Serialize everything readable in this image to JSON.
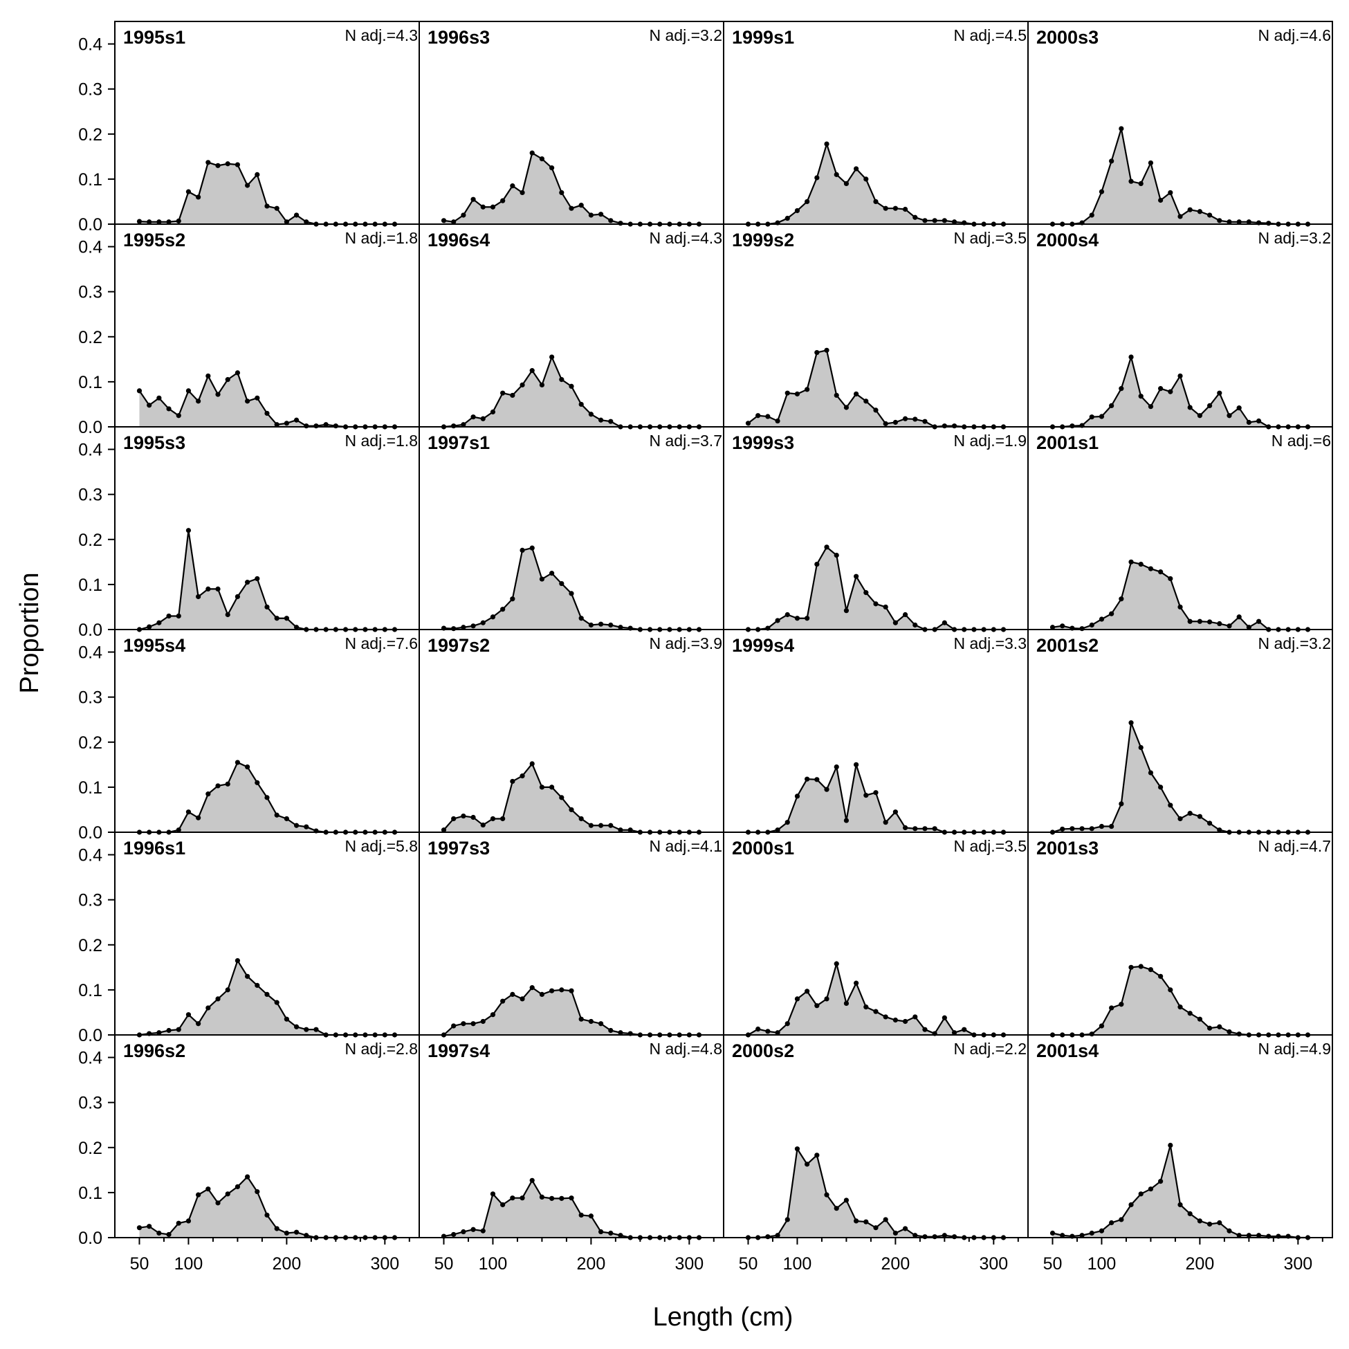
{
  "chart_data": {
    "type": "area",
    "layout": "4 columns x 6 rows of small multiples, filled grey area with black line and point markers",
    "xlabel": "Length (cm)",
    "ylabel": "Proportion",
    "xlim": [
      25,
      335
    ],
    "ylim": [
      0,
      0.45
    ],
    "x_ticks": [
      50,
      100,
      200,
      300
    ],
    "y_ticks": [
      0.0,
      0.1,
      0.2,
      0.3,
      0.4
    ],
    "y_tick_labels": [
      "0.0",
      "0.1",
      "0.2",
      "0.3",
      "0.4"
    ],
    "fill_color": "#c8c8c8",
    "line_color": "#000000",
    "x": [
      50,
      60,
      70,
      80,
      90,
      100,
      110,
      120,
      130,
      140,
      150,
      160,
      170,
      180,
      190,
      200,
      210,
      220,
      230,
      240,
      250,
      260,
      270,
      280,
      290,
      300,
      310
    ],
    "panels": [
      {
        "title": "1995s1",
        "nadj": "N adj.=4.3",
        "values": [
          0.006,
          0.005,
          0.005,
          0.005,
          0.007,
          0.072,
          0.06,
          0.137,
          0.13,
          0.134,
          0.132,
          0.086,
          0.11,
          0.04,
          0.035,
          0.005,
          0.02,
          0.005,
          0,
          0,
          0,
          0,
          0,
          0,
          0,
          0,
          0
        ]
      },
      {
        "title": "1995s2",
        "nadj": "N adj.=1.8",
        "values": [
          0.08,
          0.048,
          0.064,
          0.04,
          0.025,
          0.08,
          0.057,
          0.113,
          0.072,
          0.105,
          0.12,
          0.057,
          0.064,
          0.03,
          0.005,
          0.008,
          0.015,
          0.002,
          0.002,
          0.005,
          0.002,
          0,
          0,
          0,
          0,
          0,
          0
        ]
      },
      {
        "title": "1995s3",
        "nadj": "N adj.=1.8",
        "values": [
          0,
          0.006,
          0.015,
          0.03,
          0.03,
          0.22,
          0.073,
          0.09,
          0.09,
          0.033,
          0.073,
          0.105,
          0.113,
          0.05,
          0.025,
          0.025,
          0.005,
          0,
          0,
          0,
          0,
          0,
          0,
          0,
          0,
          0,
          0
        ]
      },
      {
        "title": "1995s4",
        "nadj": "N adj.=7.6",
        "values": [
          0,
          0,
          0,
          0,
          0.005,
          0.045,
          0.032,
          0.085,
          0.103,
          0.107,
          0.155,
          0.145,
          0.11,
          0.077,
          0.038,
          0.03,
          0.015,
          0.012,
          0.003,
          0,
          0,
          0,
          0,
          0,
          0,
          0,
          0
        ]
      },
      {
        "title": "1996s1",
        "nadj": "N adj.=5.8",
        "values": [
          0,
          0.003,
          0.005,
          0.01,
          0.012,
          0.045,
          0.025,
          0.06,
          0.08,
          0.1,
          0.165,
          0.13,
          0.11,
          0.09,
          0.072,
          0.035,
          0.018,
          0.012,
          0.012,
          0,
          0,
          0,
          0,
          0,
          0,
          0,
          0
        ]
      },
      {
        "title": "1996s2",
        "nadj": "N adj.=2.8",
        "values": [
          0.022,
          0.025,
          0.01,
          0.007,
          0.032,
          0.037,
          0.095,
          0.108,
          0.077,
          0.097,
          0.113,
          0.135,
          0.102,
          0.05,
          0.02,
          0.01,
          0.012,
          0.005,
          0,
          0,
          0,
          0,
          0,
          0,
          0,
          0,
          0
        ]
      },
      {
        "title": "1996s3",
        "nadj": "N adj.=3.2",
        "values": [
          0.008,
          0.005,
          0.02,
          0.055,
          0.038,
          0.038,
          0.052,
          0.085,
          0.07,
          0.158,
          0.145,
          0.125,
          0.07,
          0.035,
          0.042,
          0.02,
          0.022,
          0.008,
          0.002,
          0,
          0,
          0,
          0,
          0,
          0,
          0,
          0
        ]
      },
      {
        "title": "1996s4",
        "nadj": "N adj.=4.3",
        "values": [
          0,
          0.002,
          0.005,
          0.022,
          0.018,
          0.033,
          0.075,
          0.07,
          0.093,
          0.125,
          0.093,
          0.155,
          0.105,
          0.09,
          0.05,
          0.028,
          0.015,
          0.012,
          0,
          0,
          0,
          0,
          0,
          0,
          0,
          0,
          0
        ]
      },
      {
        "title": "1997s1",
        "nadj": "N adj.=3.7",
        "values": [
          0.003,
          0.002,
          0.005,
          0.008,
          0.015,
          0.028,
          0.045,
          0.068,
          0.176,
          0.181,
          0.112,
          0.125,
          0.102,
          0.08,
          0.025,
          0.01,
          0.012,
          0.01,
          0.005,
          0.003,
          0,
          0,
          0,
          0,
          0,
          0,
          0
        ]
      },
      {
        "title": "1997s2",
        "nadj": "N adj.=3.9",
        "values": [
          0.005,
          0.03,
          0.036,
          0.033,
          0.016,
          0.03,
          0.03,
          0.113,
          0.125,
          0.152,
          0.1,
          0.1,
          0.077,
          0.05,
          0.03,
          0.015,
          0.015,
          0.015,
          0.005,
          0.005,
          0,
          0,
          0,
          0,
          0,
          0,
          0
        ]
      },
      {
        "title": "1997s3",
        "nadj": "N adj.=4.1",
        "values": [
          0,
          0.02,
          0.025,
          0.025,
          0.03,
          0.045,
          0.075,
          0.09,
          0.08,
          0.105,
          0.09,
          0.098,
          0.1,
          0.098,
          0.035,
          0.03,
          0.025,
          0.01,
          0.005,
          0.003,
          0,
          0,
          0,
          0,
          0,
          0,
          0
        ]
      },
      {
        "title": "1997s4",
        "nadj": "N adj.=4.8",
        "values": [
          0.003,
          0.007,
          0.013,
          0.018,
          0.015,
          0.097,
          0.073,
          0.088,
          0.088,
          0.127,
          0.09,
          0.087,
          0.087,
          0.088,
          0.05,
          0.048,
          0.013,
          0.01,
          0.005,
          0,
          0,
          0,
          0,
          0,
          0,
          0,
          0
        ]
      },
      {
        "title": "1999s1",
        "nadj": "N adj.=4.5",
        "values": [
          0,
          0,
          0,
          0.003,
          0.013,
          0.03,
          0.05,
          0.103,
          0.178,
          0.11,
          0.09,
          0.123,
          0.1,
          0.05,
          0.035,
          0.035,
          0.033,
          0.015,
          0.008,
          0.008,
          0.008,
          0.005,
          0.003,
          0,
          0,
          0,
          0
        ]
      },
      {
        "title": "1999s2",
        "nadj": "N adj.=3.5",
        "values": [
          0.008,
          0.025,
          0.023,
          0.013,
          0.075,
          0.073,
          0.083,
          0.165,
          0.17,
          0.07,
          0.043,
          0.073,
          0.057,
          0.037,
          0.007,
          0.01,
          0.018,
          0.017,
          0.012,
          0,
          0.002,
          0.002,
          0,
          0,
          0,
          0,
          0
        ]
      },
      {
        "title": "1999s3",
        "nadj": "N adj.=1.9",
        "values": [
          0,
          0,
          0.003,
          0.02,
          0.033,
          0.025,
          0.025,
          0.145,
          0.183,
          0.165,
          0.042,
          0.118,
          0.082,
          0.057,
          0.05,
          0.015,
          0.033,
          0.01,
          0,
          0,
          0.015,
          0,
          0,
          0,
          0,
          0,
          0
        ]
      },
      {
        "title": "1999s4",
        "nadj": "N adj.=3.3",
        "values": [
          0,
          0,
          0,
          0.005,
          0.022,
          0.08,
          0.118,
          0.117,
          0.095,
          0.145,
          0.026,
          0.15,
          0.082,
          0.088,
          0.022,
          0.045,
          0.01,
          0.008,
          0.008,
          0.008,
          0,
          0,
          0,
          0,
          0,
          0,
          0
        ]
      },
      {
        "title": "2000s1",
        "nadj": "N adj.=3.5",
        "values": [
          0,
          0.013,
          0.008,
          0.005,
          0.025,
          0.08,
          0.097,
          0.065,
          0.08,
          0.158,
          0.07,
          0.115,
          0.062,
          0.052,
          0.04,
          0.033,
          0.03,
          0.04,
          0.012,
          0.003,
          0.038,
          0.005,
          0.012,
          0,
          0,
          0,
          0
        ]
      },
      {
        "title": "2000s2",
        "nadj": "N adj.=2.2",
        "values": [
          0,
          0,
          0.002,
          0.005,
          0.04,
          0.197,
          0.163,
          0.183,
          0.095,
          0.065,
          0.083,
          0.037,
          0.035,
          0.022,
          0.04,
          0.01,
          0.02,
          0.005,
          0.002,
          0.002,
          0.005,
          0.002,
          0,
          0,
          0,
          0,
          0
        ]
      },
      {
        "title": "2000s3",
        "nadj": "N adj.=4.6",
        "values": [
          0,
          0,
          0,
          0.003,
          0.02,
          0.072,
          0.14,
          0.212,
          0.095,
          0.09,
          0.136,
          0.053,
          0.07,
          0.017,
          0.032,
          0.028,
          0.02,
          0.008,
          0.005,
          0.005,
          0.005,
          0.003,
          0.002,
          0,
          0,
          0,
          0
        ]
      },
      {
        "title": "2000s4",
        "nadj": "N adj.=3.2",
        "values": [
          0,
          0,
          0.002,
          0.003,
          0.022,
          0.023,
          0.047,
          0.085,
          0.155,
          0.068,
          0.045,
          0.085,
          0.078,
          0.113,
          0.043,
          0.025,
          0.047,
          0.075,
          0.025,
          0.042,
          0.01,
          0.013,
          0,
          0,
          0,
          0,
          0
        ]
      },
      {
        "title": "2001s1",
        "nadj": "N adj.=6",
        "values": [
          0.005,
          0.008,
          0.003,
          0.002,
          0.01,
          0.023,
          0.035,
          0.068,
          0.15,
          0.145,
          0.135,
          0.128,
          0.113,
          0.05,
          0.018,
          0.018,
          0.017,
          0.013,
          0.008,
          0.028,
          0.005,
          0.018,
          0,
          0,
          0,
          0,
          0
        ]
      },
      {
        "title": "2001s2",
        "nadj": "N adj.=3.2",
        "values": [
          0,
          0.007,
          0.008,
          0.008,
          0.008,
          0.013,
          0.013,
          0.063,
          0.243,
          0.188,
          0.132,
          0.1,
          0.06,
          0.03,
          0.042,
          0.035,
          0.02,
          0.005,
          0,
          0,
          0,
          0,
          0,
          0,
          0,
          0,
          0
        ]
      },
      {
        "title": "2001s3",
        "nadj": "N adj.=4.7",
        "values": [
          0,
          0,
          0,
          0,
          0.002,
          0.02,
          0.06,
          0.068,
          0.15,
          0.152,
          0.145,
          0.13,
          0.1,
          0.062,
          0.048,
          0.035,
          0.015,
          0.018,
          0.007,
          0.002,
          0,
          0,
          0,
          0,
          0,
          0,
          0
        ]
      },
      {
        "title": "2001s4",
        "nadj": "N adj.=4.9",
        "values": [
          0.01,
          0.005,
          0.003,
          0.005,
          0.01,
          0.015,
          0.033,
          0.04,
          0.073,
          0.097,
          0.108,
          0.125,
          0.205,
          0.073,
          0.053,
          0.037,
          0.03,
          0.033,
          0.015,
          0.005,
          0.005,
          0.005,
          0.003,
          0.003,
          0.003,
          0,
          0
        ]
      }
    ]
  }
}
